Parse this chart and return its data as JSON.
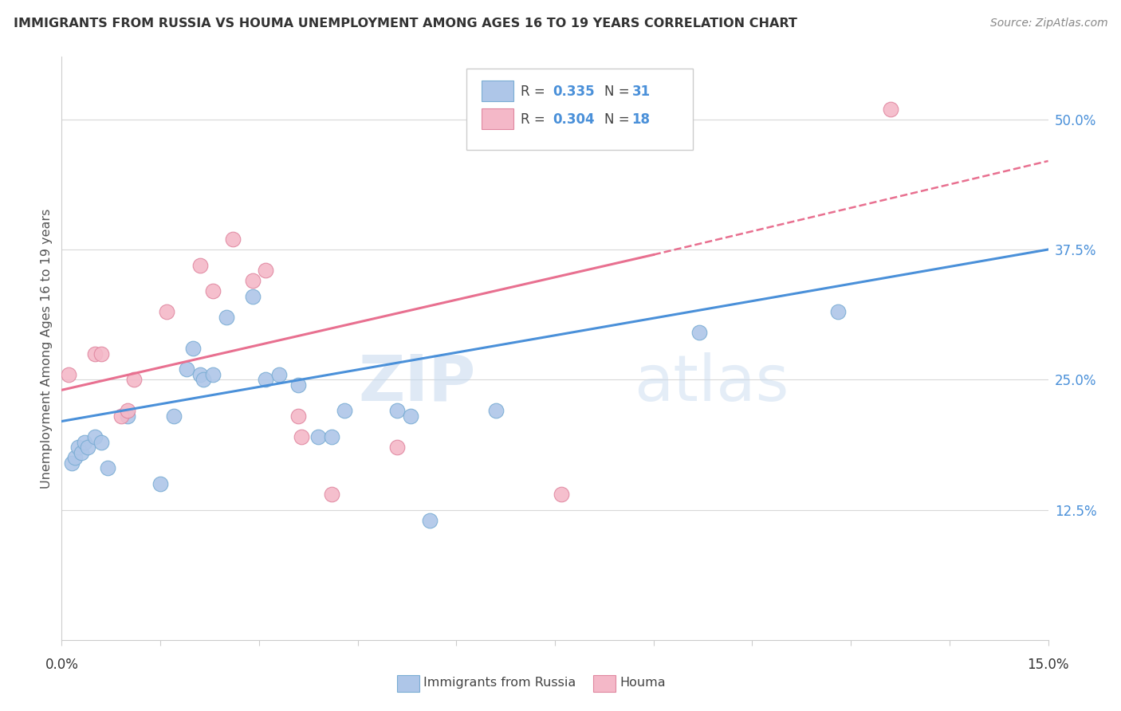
{
  "title": "IMMIGRANTS FROM RUSSIA VS HOUMA UNEMPLOYMENT AMONG AGES 16 TO 19 YEARS CORRELATION CHART",
  "source": "Source: ZipAtlas.com",
  "ylabel_label": "Unemployment Among Ages 16 to 19 years",
  "y_ticks": [
    12.5,
    25.0,
    37.5,
    50.0
  ],
  "y_tick_labels": [
    "12.5%",
    "25.0%",
    "37.5%",
    "50.0%"
  ],
  "x_range": [
    0,
    15
  ],
  "y_range": [
    0,
    56
  ],
  "watermark_zip": "ZIP",
  "watermark_atlas": "atlas",
  "blue_scatter": [
    [
      0.15,
      17.0
    ],
    [
      0.2,
      17.5
    ],
    [
      0.25,
      18.5
    ],
    [
      0.3,
      18.0
    ],
    [
      0.35,
      19.0
    ],
    [
      0.4,
      18.5
    ],
    [
      0.5,
      19.5
    ],
    [
      0.6,
      19.0
    ],
    [
      0.7,
      16.5
    ],
    [
      1.0,
      21.5
    ],
    [
      1.5,
      15.0
    ],
    [
      1.7,
      21.5
    ],
    [
      1.9,
      26.0
    ],
    [
      2.0,
      28.0
    ],
    [
      2.1,
      25.5
    ],
    [
      2.15,
      25.0
    ],
    [
      2.3,
      25.5
    ],
    [
      2.5,
      31.0
    ],
    [
      2.9,
      33.0
    ],
    [
      3.1,
      25.0
    ],
    [
      3.3,
      25.5
    ],
    [
      3.6,
      24.5
    ],
    [
      3.9,
      19.5
    ],
    [
      4.1,
      19.5
    ],
    [
      4.3,
      22.0
    ],
    [
      5.1,
      22.0
    ],
    [
      5.3,
      21.5
    ],
    [
      5.6,
      11.5
    ],
    [
      6.6,
      22.0
    ],
    [
      9.7,
      29.5
    ],
    [
      11.8,
      31.5
    ]
  ],
  "pink_scatter": [
    [
      0.1,
      25.5
    ],
    [
      0.5,
      27.5
    ],
    [
      0.6,
      27.5
    ],
    [
      0.9,
      21.5
    ],
    [
      1.0,
      22.0
    ],
    [
      1.1,
      25.0
    ],
    [
      1.6,
      31.5
    ],
    [
      2.1,
      36.0
    ],
    [
      2.3,
      33.5
    ],
    [
      2.6,
      38.5
    ],
    [
      2.9,
      34.5
    ],
    [
      3.1,
      35.5
    ],
    [
      3.6,
      21.5
    ],
    [
      3.65,
      19.5
    ],
    [
      4.1,
      14.0
    ],
    [
      5.1,
      18.5
    ],
    [
      7.6,
      14.0
    ],
    [
      12.6,
      51.0
    ]
  ],
  "blue_line": [
    [
      0,
      21.0
    ],
    [
      15,
      37.5
    ]
  ],
  "pink_line_solid": [
    [
      0,
      24.0
    ],
    [
      9.0,
      37.0
    ]
  ],
  "pink_line_dashed": [
    [
      9.0,
      37.0
    ],
    [
      15,
      46.0
    ]
  ],
  "blue_color": "#4a90d9",
  "blue_scatter_color": "#aec6e8",
  "blue_scatter_edge": "#7aadd4",
  "pink_color": "#e87090",
  "pink_scatter_color": "#f4b8c8",
  "pink_scatter_edge": "#e087a0",
  "grid_color": "#d8d8d8",
  "background_color": "#ffffff",
  "title_color": "#333333",
  "source_color": "#888888",
  "tick_label_color": "#4a90d9",
  "axis_color": "#cccccc"
}
